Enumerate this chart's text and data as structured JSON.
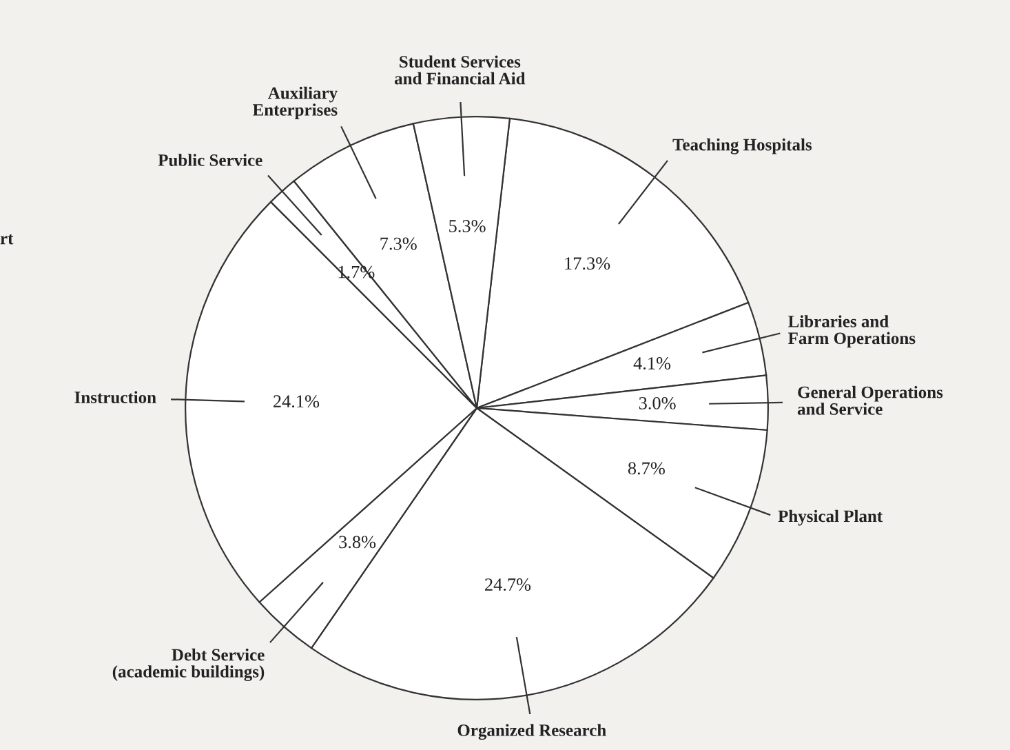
{
  "chart_data": {
    "type": "pie",
    "categories": [
      "Teaching Hospitals",
      "Libraries and\nFarm Operations",
      "General Operations\nand Service",
      "Physical Plant",
      "Organized Research",
      "Debt Service\n(academic buildings)",
      "Instruction",
      "Public Service",
      "Auxiliary\nEnterprises",
      "Student Services\nand Financial Aid"
    ],
    "values": [
      17.3,
      4.1,
      3.0,
      8.7,
      24.7,
      3.8,
      24.1,
      1.7,
      7.3,
      5.3
    ],
    "value_labels": [
      "17.3%",
      "4.1%",
      "3.0%",
      "8.7%",
      "24.7%",
      "3.8%",
      "24.1%",
      "1.7%",
      "7.3%",
      "5.3%"
    ],
    "colors": [
      "#ffffff",
      "#ffffff",
      "#ffffff",
      "#ffffff",
      "#ffffff",
      "#ffffff",
      "#ffffff",
      "#ffffff",
      "#ffffff",
      "#ffffff"
    ],
    "annotations": [
      "rt"
    ],
    "legend": false
  }
}
